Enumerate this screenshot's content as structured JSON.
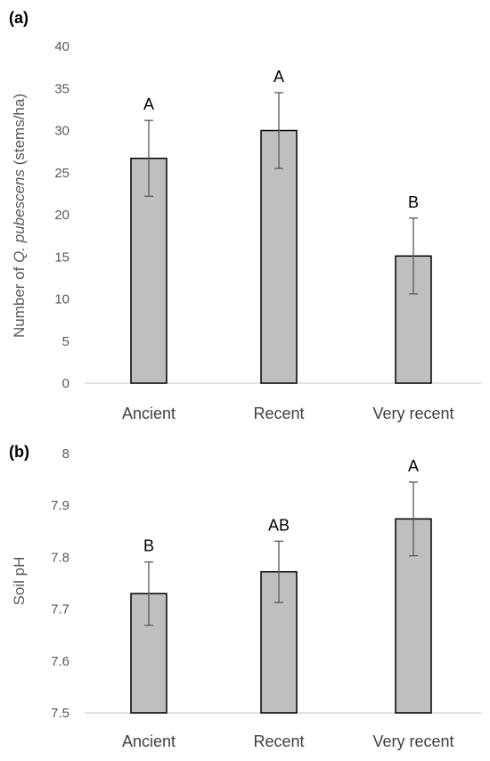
{
  "chart_data": [
    {
      "panel": "(a)",
      "type": "bar",
      "categories": [
        "Ancient",
        "Recent",
        "Very recent"
      ],
      "values": [
        26.7,
        30.0,
        15.1
      ],
      "errors": [
        4.5,
        4.5,
        4.5
      ],
      "letters": [
        "A",
        "A",
        "B"
      ],
      "ylabel": {
        "pre": "Number of ",
        "italic": "Q. pubescens",
        "post": " (stems/ha)"
      },
      "ylim": [
        0,
        40
      ],
      "yticks": [
        "0",
        "5",
        "10",
        "15",
        "20",
        "25",
        "30",
        "35",
        "40"
      ],
      "bar_color": "#bfbfbf",
      "grid": false
    },
    {
      "panel": "(b)",
      "type": "bar",
      "categories": [
        "Ancient",
        "Recent",
        "Very recent"
      ],
      "values": [
        7.73,
        7.772,
        7.874
      ],
      "errors": [
        0.061,
        0.059,
        0.071
      ],
      "letters": [
        "B",
        "AB",
        "A"
      ],
      "ylabel": {
        "pre": "Soil pH",
        "italic": "",
        "post": ""
      },
      "ylim": [
        7.5,
        8.0
      ],
      "yticks": [
        "7.5",
        "7.6",
        "7.7",
        "7.8",
        "7.9",
        "8"
      ],
      "bar_color": "#bfbfbf",
      "grid": false
    }
  ]
}
